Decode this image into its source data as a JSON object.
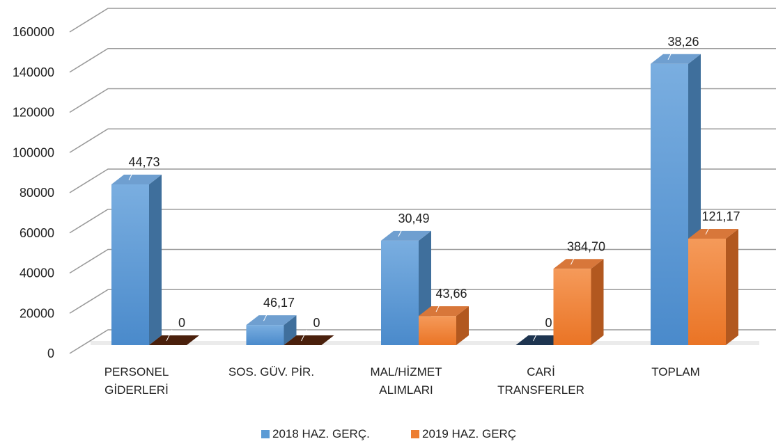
{
  "chart_data": {
    "type": "bar3d",
    "categories": [
      "PERSONEL\nGİDERLERİ",
      "SOS. GÜV. PİR.",
      "MAL/HİZMET\nALIMLARI",
      "CARİ\nTRANSFERLER",
      "TOPLAM"
    ],
    "series": [
      {
        "name": "2018 HAZ. GERÇ.",
        "color": "#5b9bd5",
        "values": [
          80000,
          10000,
          52000,
          0,
          140000
        ],
        "annotations": [
          "44,73",
          "46,17",
          "30,49",
          "0",
          "38,26"
        ]
      },
      {
        "name": "2019 HAZ. GERÇ",
        "color": "#ed7d31",
        "values": [
          0,
          0,
          14500,
          38000,
          53000
        ],
        "annotations": [
          "0",
          "0",
          "43,66",
          "384,70",
          "121,17"
        ]
      }
    ],
    "ylim": [
      0,
      160000
    ],
    "yticks": [
      0,
      20000,
      40000,
      60000,
      80000,
      100000,
      120000,
      140000,
      160000
    ],
    "grid": true,
    "legend": "bottom"
  }
}
